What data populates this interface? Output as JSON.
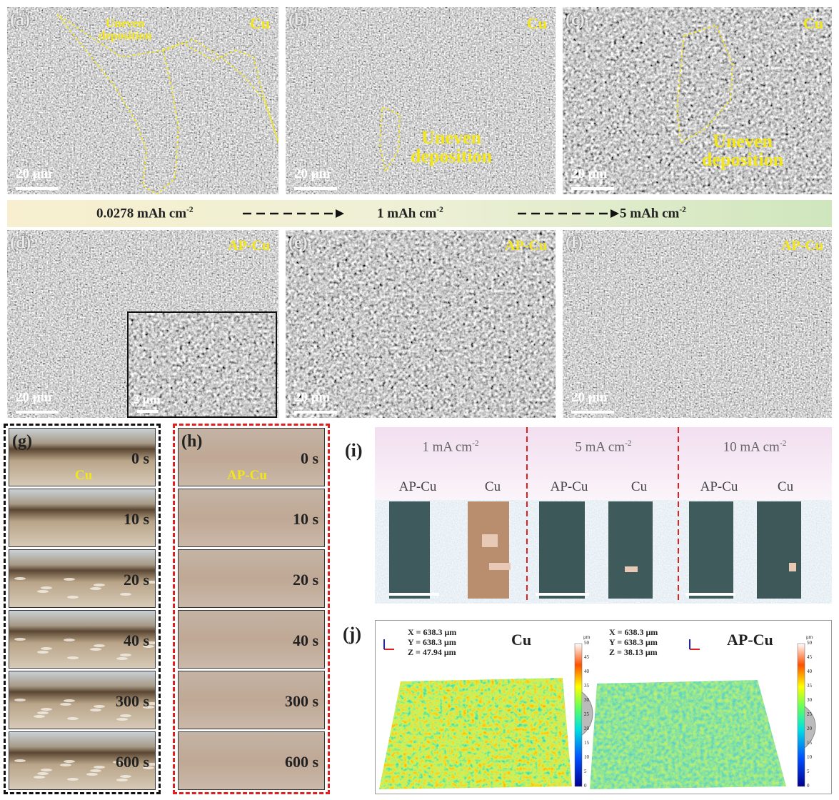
{
  "panels": {
    "a": {
      "label": "(a)",
      "material": "Cu",
      "annotation": [
        "Uneven",
        "deposition"
      ],
      "scale_bar": "20 μm"
    },
    "b": {
      "label": "(b)",
      "material": "Cu",
      "annotation": [
        "Uneven",
        "deposition"
      ],
      "scale_bar": "20 μm"
    },
    "c": {
      "label": "(c)",
      "material": "Cu",
      "annotation": [
        "Uneven",
        "deposition"
      ],
      "scale_bar": "20 μm"
    },
    "d": {
      "label": "(d)",
      "material": "AP-Cu",
      "scale_bar": "20 μm",
      "inset_scale_bar": "2 μm"
    },
    "e": {
      "label": "(e)",
      "material": "AP-Cu",
      "scale_bar": "20 μm"
    },
    "f": {
      "label": "(f)",
      "material": "AP-Cu",
      "scale_bar": "20 μm"
    }
  },
  "capacity_bar": [
    {
      "text": "0.0278 mAh cm",
      "sup": "-2"
    },
    {
      "text": "1 mAh cm",
      "sup": "-2"
    },
    {
      "text": "5 mAh cm",
      "sup": "-2"
    }
  ],
  "g": {
    "label": "(g)",
    "material": "Cu",
    "times": [
      "0 s",
      "10 s",
      "20 s",
      "40 s",
      "300 s",
      "600 s"
    ]
  },
  "h": {
    "label": "(h)",
    "material": "AP-Cu",
    "times": [
      "0 s",
      "10 s",
      "20 s",
      "40 s",
      "300 s",
      "600 s"
    ]
  },
  "i": {
    "label": "(i)",
    "columns": [
      {
        "current": {
          "text": "1 mA cm",
          "sup": "-2"
        },
        "samples": [
          "AP-Cu",
          "Cu"
        ]
      },
      {
        "current": {
          "text": "5 mA cm",
          "sup": "-2"
        },
        "samples": [
          "AP-Cu",
          "Cu"
        ]
      },
      {
        "current": {
          "text": "10 mA cm",
          "sup": "-2"
        },
        "samples": [
          "AP-Cu",
          "Cu"
        ]
      }
    ]
  },
  "j": {
    "label": "(j)",
    "profiles": [
      {
        "material": "Cu",
        "dimensions": [
          "X = 638.3 μm",
          "Y = 638.3 μm",
          "Z = 47.94 μm"
        ],
        "colorbar_unit": "μm",
        "colorbar_ticks": [
          50,
          45,
          40,
          35,
          30,
          25,
          20,
          15,
          10,
          5,
          0
        ]
      },
      {
        "material": "AP-Cu",
        "dimensions": [
          "X = 638.3 μm",
          "Y = 638.3 μm",
          "Z = 38.13 μm"
        ],
        "colorbar_unit": "μm",
        "colorbar_ticks": [
          50,
          45,
          40,
          35,
          30,
          25,
          20,
          15,
          10,
          5,
          0
        ]
      }
    ]
  }
}
